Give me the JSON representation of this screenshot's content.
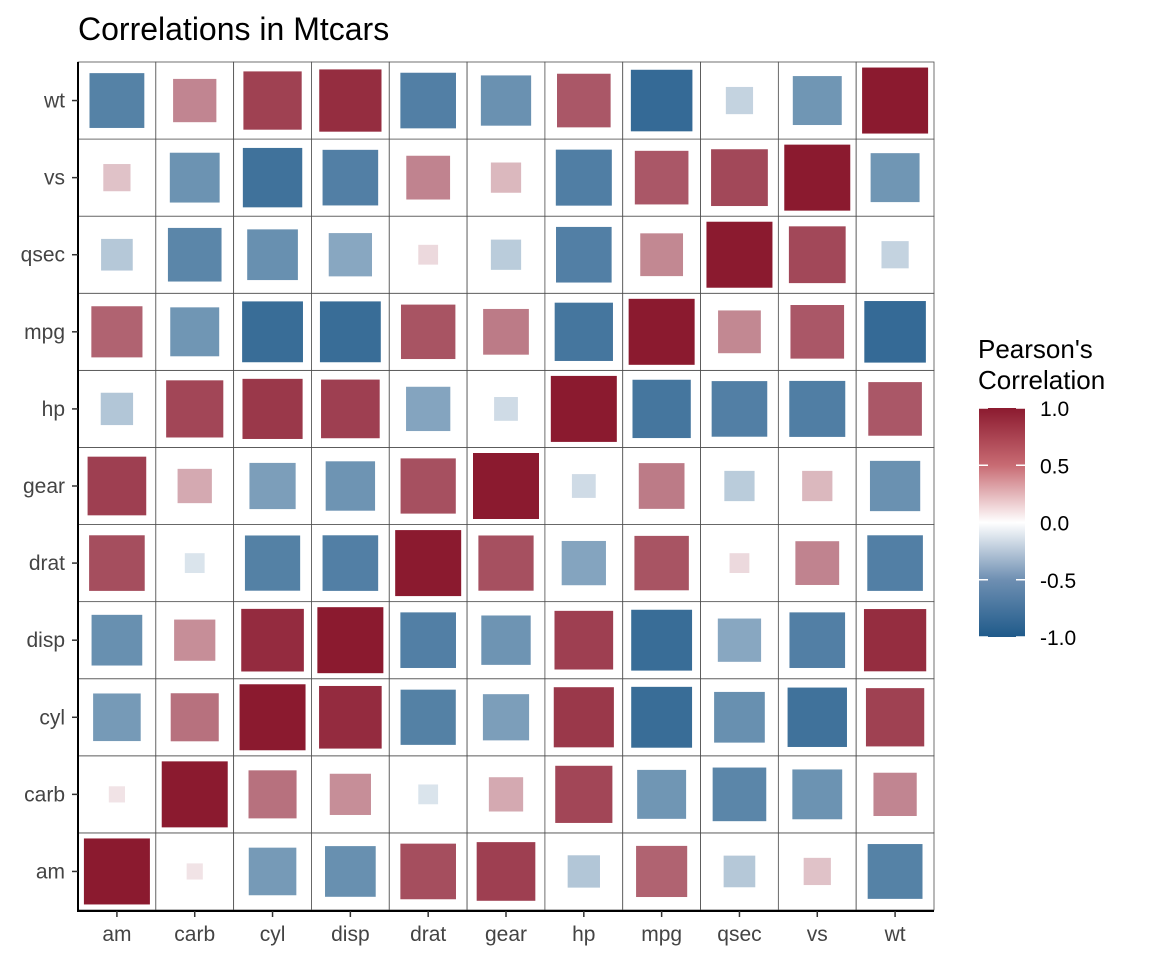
{
  "chart_data": {
    "type": "heatmap",
    "title": "Correlations in Mtcars",
    "xlabel": "",
    "ylabel": "",
    "x_categories": [
      "am",
      "carb",
      "cyl",
      "disp",
      "drat",
      "gear",
      "hp",
      "mpg",
      "qsec",
      "vs",
      "wt"
    ],
    "y_categories": [
      "am",
      "carb",
      "cyl",
      "disp",
      "drat",
      "gear",
      "hp",
      "mpg",
      "qsec",
      "vs",
      "wt"
    ],
    "values": [
      [
        1.0,
        0.06,
        -0.52,
        -0.59,
        0.71,
        0.79,
        -0.24,
        0.6,
        -0.23,
        0.17,
        -0.69
      ],
      [
        0.06,
        1.0,
        0.53,
        0.39,
        -0.09,
        0.27,
        0.75,
        -0.55,
        -0.66,
        -0.57,
        0.43
      ],
      [
        -0.52,
        0.53,
        1.0,
        0.9,
        -0.7,
        -0.49,
        0.83,
        -0.85,
        -0.59,
        -0.81,
        0.78
      ],
      [
        -0.59,
        0.39,
        0.9,
        1.0,
        -0.71,
        -0.56,
        0.79,
        -0.85,
        -0.43,
        -0.71,
        0.89
      ],
      [
        0.71,
        -0.09,
        -0.7,
        -0.71,
        1.0,
        0.7,
        -0.45,
        0.68,
        0.09,
        0.44,
        -0.71
      ],
      [
        0.79,
        0.27,
        -0.49,
        -0.56,
        0.7,
        1.0,
        -0.13,
        0.48,
        -0.21,
        0.21,
        -0.58
      ],
      [
        -0.24,
        0.75,
        0.83,
        0.79,
        -0.45,
        -0.13,
        1.0,
        -0.78,
        -0.71,
        -0.72,
        0.66
      ],
      [
        0.6,
        -0.55,
        -0.85,
        -0.85,
        0.68,
        0.48,
        -0.78,
        1.0,
        0.42,
        0.66,
        -0.87
      ],
      [
        -0.23,
        -0.66,
        -0.59,
        -0.43,
        0.09,
        -0.21,
        -0.71,
        0.42,
        1.0,
        0.74,
        -0.17
      ],
      [
        0.17,
        -0.57,
        -0.81,
        -0.71,
        0.44,
        0.21,
        -0.72,
        0.66,
        0.74,
        1.0,
        -0.55
      ],
      [
        -0.69,
        0.43,
        0.78,
        0.89,
        -0.71,
        -0.58,
        0.66,
        -0.87,
        -0.17,
        -0.55,
        1.0
      ]
    ],
    "legend": {
      "title_line1": "Pearson's",
      "title_line2": "Correlation",
      "ticks": [
        1.0,
        0.5,
        0.0,
        -0.5,
        -1.0
      ],
      "tick_labels": [
        "1.0",
        "0.5",
        "0.0",
        "-0.5",
        "-1.0"
      ],
      "placement": "right"
    },
    "color_scale": {
      "low": "#1f5a8a",
      "mid": "#ffffff",
      "high": "#8b1a2f",
      "domain": [
        -1,
        1
      ]
    },
    "grid": true
  }
}
